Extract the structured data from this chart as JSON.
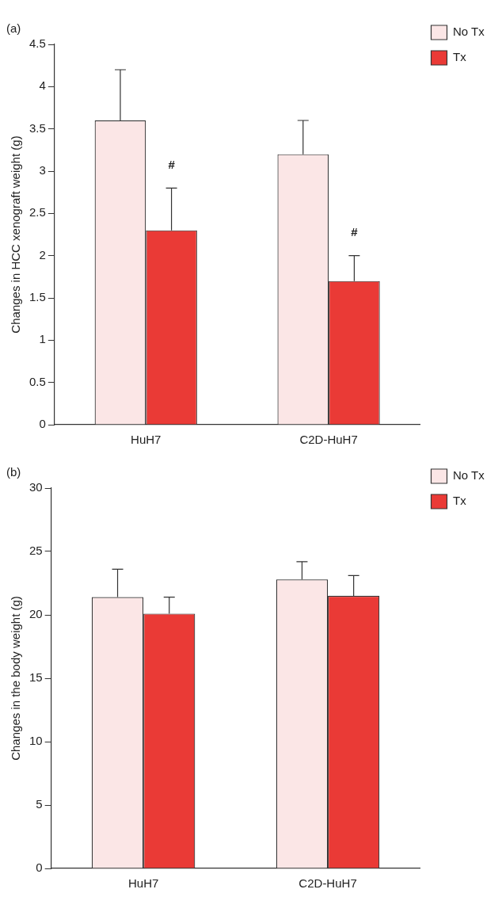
{
  "chart_data": [
    {
      "type": "bar",
      "title": "(a)",
      "ylabel": "Changes in HCC xenograft weight (g)",
      "categories": [
        "HuH7",
        "C2D-HuH7"
      ],
      "series": [
        {
          "name": "No Tx",
          "color": "#fbe6e6",
          "values": [
            3.6,
            3.2
          ],
          "errors": [
            [
              3.6,
              4.2
            ],
            [
              3.2,
              3.6
            ]
          ]
        },
        {
          "name": "Tx",
          "color": "#ea3a36",
          "values": [
            2.3,
            1.7
          ],
          "errors": [
            [
              2.3,
              2.8
            ],
            [
              1.7,
              2.0
            ]
          ]
        }
      ],
      "ylim": [
        0,
        4.5
      ],
      "yticks": [
        0,
        0.5,
        1,
        1.5,
        2,
        2.5,
        3,
        3.5,
        4,
        4.5
      ],
      "grid": false,
      "legend": "top right",
      "annotations": [
        {
          "text": "#",
          "x": "HuH7",
          "y": 3.0
        },
        {
          "text": "#",
          "x": "C2D-HuH7",
          "y": 2.2
        }
      ]
    },
    {
      "type": "bar",
      "title": "(b)",
      "ylabel": "Changes in the body weight (g)",
      "categories": [
        "HuH7",
        "C2D-HuH7"
      ],
      "series": [
        {
          "name": "No Tx",
          "color": "#fbe6e6",
          "values": [
            21.4,
            22.8
          ],
          "errors": [
            [
              21.4,
              23.6
            ],
            [
              22.8,
              24.2
            ]
          ]
        },
        {
          "name": "Tx",
          "color": "#ea3a36",
          "values": [
            20.1,
            21.5
          ],
          "errors": [
            [
              20.1,
              21.4
            ],
            [
              21.5,
              23.1
            ]
          ]
        }
      ],
      "ylim": [
        0,
        30
      ],
      "yticks": [
        0,
        5,
        10,
        15,
        20,
        25,
        30
      ],
      "grid": false,
      "legend": "top right"
    }
  ]
}
